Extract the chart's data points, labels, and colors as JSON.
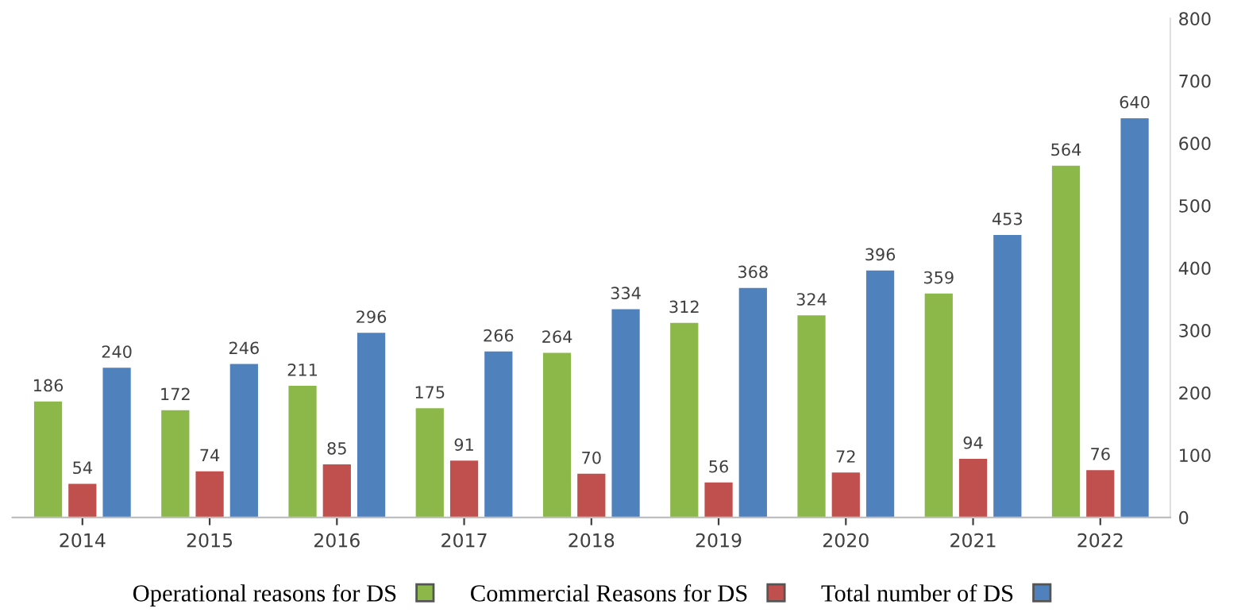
{
  "chart_data": {
    "type": "bar",
    "categories": [
      "2014",
      "2015",
      "2016",
      "2017",
      "2018",
      "2019",
      "2020",
      "2021",
      "2022"
    ],
    "series": [
      {
        "name": "Operational reasons for DS",
        "color": "#8cb84a",
        "values": [
          186,
          172,
          211,
          175,
          264,
          312,
          324,
          359,
          564
        ]
      },
      {
        "name": "Commercial Reasons for DS",
        "color": "#c0504d",
        "values": [
          54,
          74,
          85,
          91,
          70,
          56,
          72,
          94,
          76
        ]
      },
      {
        "name": "Total number of DS",
        "color": "#4f81bd",
        "values": [
          240,
          246,
          296,
          266,
          334,
          368,
          396,
          453,
          640
        ]
      }
    ],
    "ylim": [
      0,
      800
    ],
    "yticks": [
      0,
      100,
      200,
      300,
      400,
      500,
      600,
      700,
      800
    ],
    "data_labels": true,
    "grid": false,
    "legend": "bottom"
  }
}
